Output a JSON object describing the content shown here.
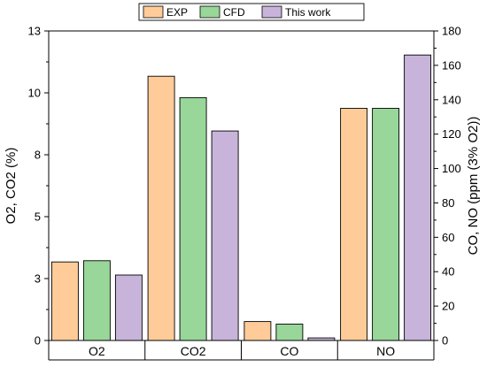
{
  "chart_data": {
    "type": "bar",
    "categories": [
      "O2",
      "CO2",
      "CO",
      "NO"
    ],
    "series": [
      {
        "name": "EXP",
        "color": "#FFCC99"
      },
      {
        "name": "CFD",
        "color": "#99D699"
      },
      {
        "name": "This work",
        "color": "#C8B4DA"
      }
    ],
    "left_axis": {
      "label": "O2, CO2 (%)",
      "ylim": [
        0,
        13
      ],
      "ticks": [
        0,
        2.6,
        5.2,
        7.8,
        10.4,
        13
      ],
      "tick_labels": [
        "0",
        "3",
        "5",
        "8",
        "10",
        "13"
      ]
    },
    "right_axis": {
      "label": "CO, NO (ppm (3% O2))",
      "ylim": [
        0,
        180
      ],
      "ticks": [
        0,
        20,
        40,
        60,
        80,
        100,
        120,
        140,
        160,
        180
      ],
      "tick_labels": [
        "0",
        "20",
        "40",
        "60",
        "80",
        "100",
        "120",
        "140",
        "160",
        "180"
      ]
    },
    "values": {
      "O2": {
        "axis": "left",
        "values": [
          3.3,
          3.35,
          2.75
        ]
      },
      "CO2": {
        "axis": "left",
        "values": [
          11.1,
          10.2,
          8.8
        ]
      },
      "CO": {
        "axis": "right",
        "values": [
          11,
          9.5,
          1.5
        ]
      },
      "NO": {
        "axis": "right",
        "values": [
          135,
          135,
          166
        ]
      }
    },
    "legend_position": "top",
    "grid": false
  }
}
